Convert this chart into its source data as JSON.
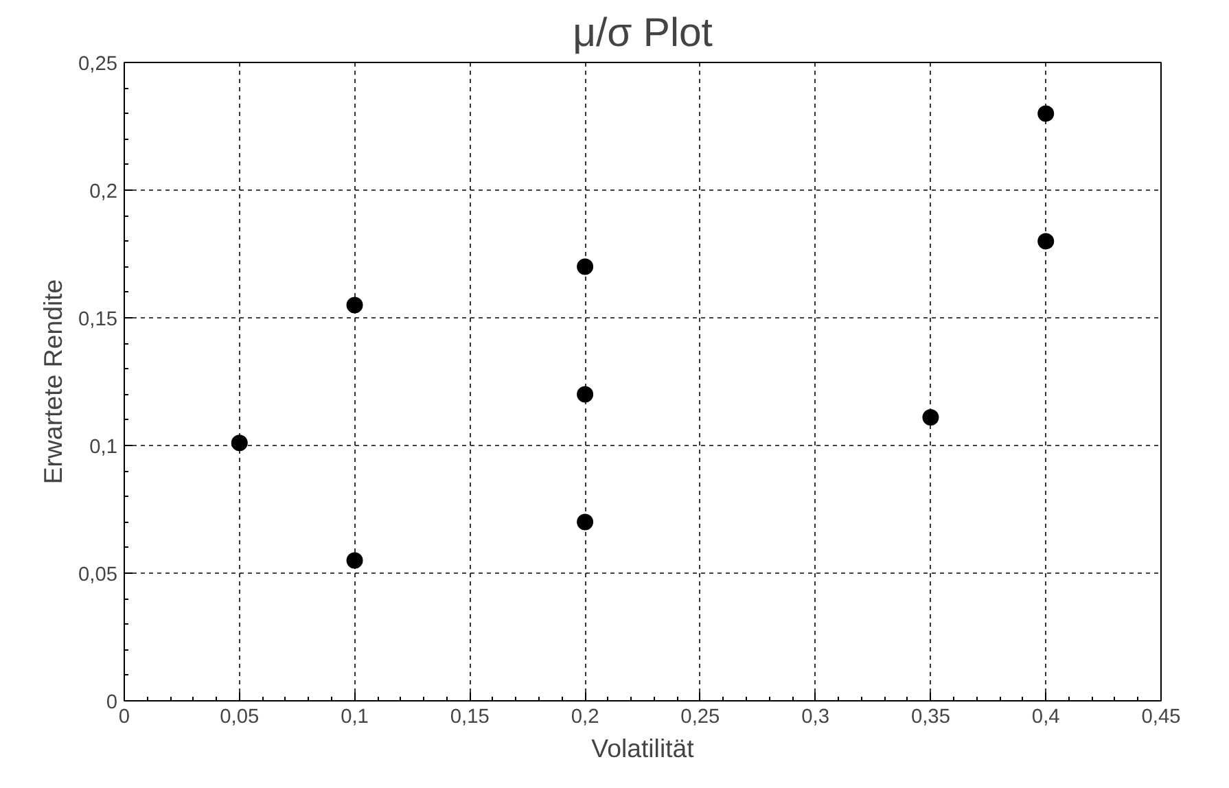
{
  "chart_data": {
    "type": "scatter",
    "title": "μ/σ Plot",
    "xlabel": "Volatilität",
    "ylabel": "Erwartete Rendite",
    "x": [
      0.05,
      0.1,
      0.1,
      0.2,
      0.2,
      0.2,
      0.35,
      0.4,
      0.4
    ],
    "series": [
      {
        "color": "#000000",
        "values": [
          0.101,
          0.155,
          0.055,
          0.17,
          0.12,
          0.07,
          0.111,
          0.23,
          0.18
        ]
      }
    ],
    "marker": "circle",
    "grid": true,
    "xlim": [
      0,
      0.45
    ],
    "ylim": [
      0,
      0.25
    ],
    "xticks": [
      0,
      {
        "value": 0.05,
        "label": "0,05"
      },
      {
        "value": 0.1,
        "label": "0,1"
      },
      {
        "value": 0.15,
        "label": "0,15"
      },
      {
        "value": 0.2,
        "label": "0,2"
      },
      {
        "value": 0.25,
        "label": "0,25"
      },
      {
        "value": 0.3,
        "label": "0,3"
      },
      {
        "value": 0.35,
        "label": "0,35"
      },
      {
        "value": 0.4,
        "label": "0,4"
      },
      {
        "value": 0.45,
        "label": "0,45"
      }
    ],
    "yticks": [
      0,
      {
        "value": 0.05,
        "label": "0,05"
      },
      {
        "value": 0.1,
        "label": "0,1"
      },
      {
        "value": 0.15,
        "label": "0,15"
      },
      {
        "value": 0.2,
        "label": "0,2"
      },
      {
        "value": 0.25,
        "label": "0,25"
      }
    ]
  }
}
